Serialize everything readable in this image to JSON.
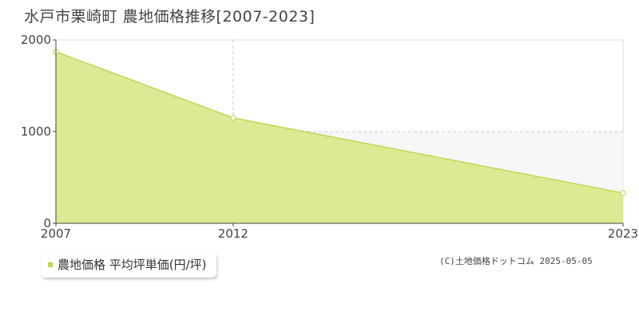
{
  "title": "水戸市栗崎町 農地価格推移[2007-2023]",
  "colors": {
    "area_fill": "#dbeb94",
    "area_line": "#bcd94f",
    "grid": "#cccccc",
    "shade": "#f7f7f9",
    "legend_marker": "#bcd94f"
  },
  "chart_data": {
    "type": "area",
    "title": "水戸市栗崎町 農地価格推移[2007-2023]",
    "x": [
      2007,
      2012,
      2023
    ],
    "y_ticks": [
      0,
      1000,
      2000
    ],
    "x_ticks": [
      2007,
      2012,
      2023
    ],
    "xlim": [
      2007,
      2023
    ],
    "ylim": [
      0,
      2000
    ],
    "grid": true,
    "series": [
      {
        "name": "農地価格 平均坪単価(円/坪)",
        "values": [
          1870,
          1150,
          330
        ]
      }
    ],
    "legend_position": "bottom-left"
  },
  "legend": {
    "label": "農地価格 平均坪単価(円/坪)"
  },
  "copyright": "(C)土地価格ドットコム 2025-05-05"
}
